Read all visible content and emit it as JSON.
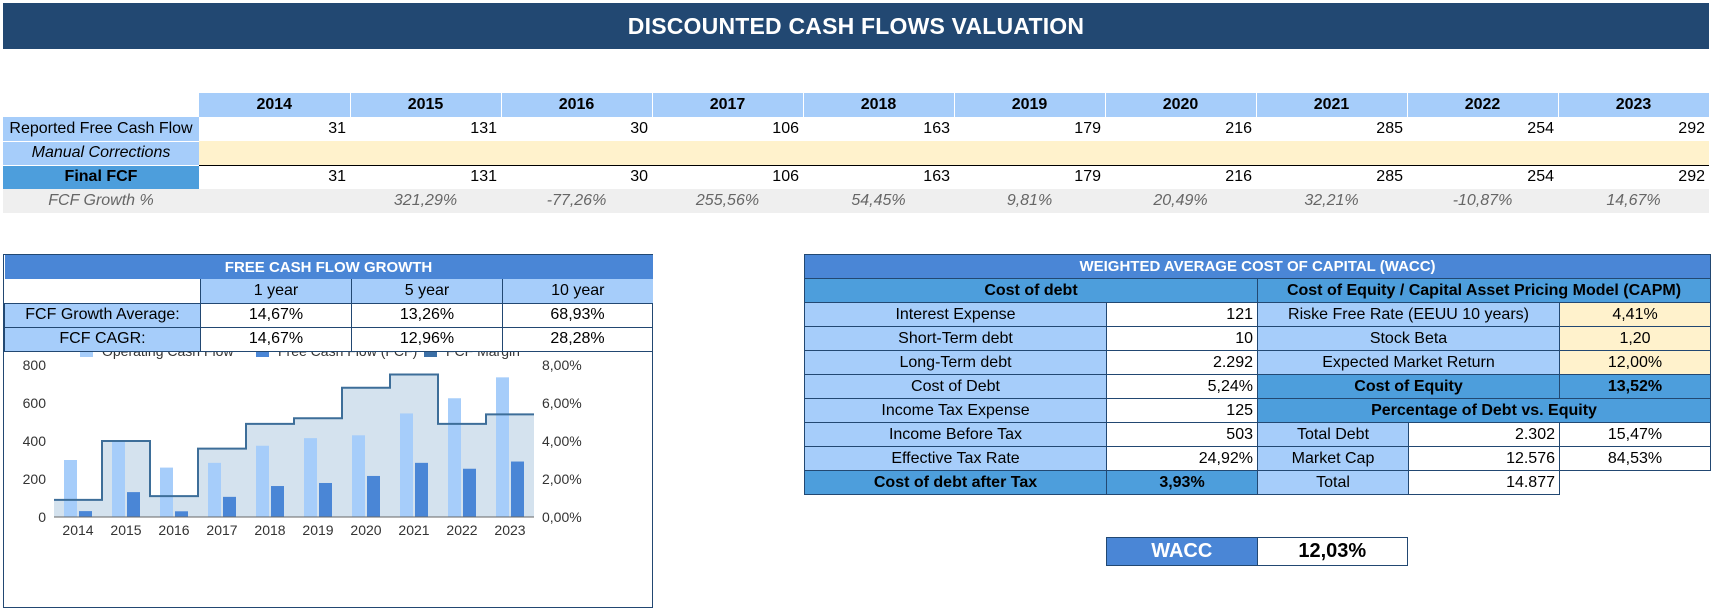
{
  "title": "DISCOUNTED CASH FLOWS VALUATION",
  "years": [
    "2014",
    "2015",
    "2016",
    "2017",
    "2018",
    "2019",
    "2020",
    "2021",
    "2022",
    "2023"
  ],
  "rows": {
    "reported": {
      "label": "Reported Free Cash Flow",
      "values": [
        "31",
        "131",
        "30",
        "106",
        "163",
        "179",
        "216",
        "285",
        "254",
        "292"
      ]
    },
    "manual": {
      "label": "Manual Corrections"
    },
    "final": {
      "label": "Final FCF",
      "values": [
        "31",
        "131",
        "30",
        "106",
        "163",
        "179",
        "216",
        "285",
        "254",
        "292"
      ]
    },
    "growth": {
      "label": "FCF Growth %",
      "values": [
        "",
        "321,29%",
        "-77,26%",
        "255,56%",
        "54,45%",
        "9,81%",
        "20,49%",
        "32,21%",
        "-10,87%",
        "14,67%"
      ]
    }
  },
  "fcf_growth": {
    "title": "FREE CASH FLOW GROWTH",
    "periods": [
      "1 year",
      "5 year",
      "10 year"
    ],
    "average": {
      "label": "FCF Growth Average:",
      "values": [
        "14,67%",
        "13,26%",
        "68,93%"
      ]
    },
    "cagr": {
      "label": "FCF CAGR:",
      "values": [
        "14,67%",
        "12,96%",
        "28,28%"
      ]
    }
  },
  "chart_data": {
    "type": "bar",
    "categories": [
      "2014",
      "2015",
      "2016",
      "2017",
      "2018",
      "2019",
      "2020",
      "2021",
      "2022",
      "2023"
    ],
    "series": [
      {
        "name": "Operating Cash Flow",
        "type": "bar",
        "axis": "left",
        "values": [
          300,
          400,
          260,
          285,
          375,
          415,
          430,
          545,
          625,
          735
        ],
        "color": "#a6cdfa"
      },
      {
        "name": "Free Cash Flow (FCF)",
        "type": "bar",
        "axis": "left",
        "values": [
          31,
          131,
          30,
          106,
          163,
          179,
          216,
          285,
          254,
          292
        ],
        "color": "#4a86d6"
      },
      {
        "name": "FCF Margin",
        "type": "step-area",
        "axis": "right",
        "values": [
          0.9,
          4.0,
          1.1,
          3.6,
          4.9,
          5.2,
          6.8,
          7.5,
          4.9,
          5.4
        ],
        "color": "#3d6e99"
      }
    ],
    "left_axis": {
      "ylim": [
        0,
        800
      ],
      "ticks": [
        "0",
        "200",
        "400",
        "600",
        "800"
      ]
    },
    "right_axis": {
      "ylim": [
        0,
        8
      ],
      "ticks": [
        "0,00%",
        "2,00%",
        "4,00%",
        "6,00%",
        "8,00%"
      ]
    },
    "legend": "top",
    "grid": false
  },
  "wacc": {
    "title": "WEIGHTED AVERAGE COST OF CAPITAL (WACC)",
    "debt_header": "Cost of debt",
    "equity_header": "Cost of Equity / Capital Asset Pricing Model (CAPM)",
    "interest_expense": {
      "label": "Interest Expense",
      "value": "121"
    },
    "short_debt": {
      "label": "Short-Term debt",
      "value": "10"
    },
    "long_debt": {
      "label": "Long-Term debt",
      "value": "2.292"
    },
    "cost_of_debt": {
      "label": "Cost of Debt",
      "value": "5,24%"
    },
    "income_tax": {
      "label": "Income Tax Expense",
      "value": "125"
    },
    "income_before_tax": {
      "label": "Income Before Tax",
      "value": "503"
    },
    "effective_tax": {
      "label": "Effective Tax Rate",
      "value": "24,92%"
    },
    "debt_after_tax": {
      "label": "Cost of debt after Tax",
      "value": "3,93%"
    },
    "risk_free": {
      "label": "Riske Free Rate (EEUU 10 years)",
      "value": "4,41%"
    },
    "beta": {
      "label": "Stock Beta",
      "value": "1,20"
    },
    "market_return": {
      "label": "Expected Market Return",
      "value": "12,00%"
    },
    "cost_of_equity": {
      "label": "Cost of Equity",
      "value": "13,52%"
    },
    "pct_header": "Percentage of Debt vs. Equity",
    "total_debt": {
      "label": "Total Debt",
      "value": "2.302",
      "pct": "15,47%"
    },
    "market_cap": {
      "label": "Market Cap",
      "value": "12.576",
      "pct": "84,53%"
    },
    "total": {
      "label": "Total",
      "value": "14.877"
    },
    "result": {
      "label": "WACC",
      "value": "12,03%"
    }
  }
}
